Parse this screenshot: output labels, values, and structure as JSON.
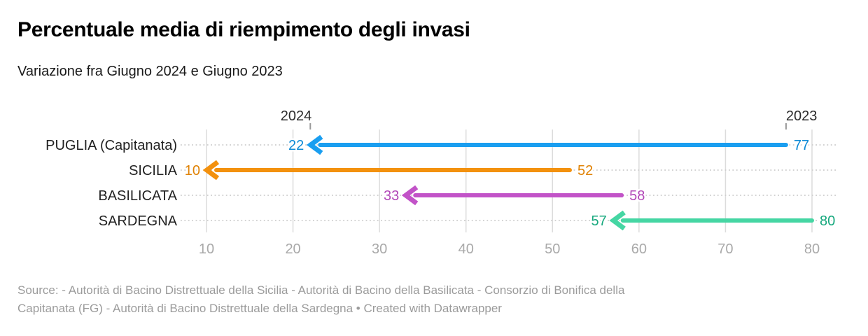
{
  "header": {
    "title": "Percentuale media di riempimento degli invasi",
    "subtitle": "Variazione fra Giugno 2024 e Giugno 2023"
  },
  "footer": {
    "lines": [
      "Source: - Autorità di Bacino Distrettuale della Sicilia - Autorità di Bacino della Basilicata - Consorzio di Bonifica della",
      "Capitanata (FG) - Autorità di Bacino Distrettuale della Sardegna • Created with Datawrapper"
    ]
  },
  "chart_data": {
    "type": "arrow",
    "title": "Percentuale media di riempimento degli invasi",
    "subtitle": "Variazione fra Giugno 2024 e Giugno 2023",
    "categories": [
      "PUGLIA (Capitanata)",
      "SICILIA",
      "BASILICATA",
      "SARDEGNA"
    ],
    "series": [
      {
        "name": "2023",
        "values": [
          77,
          52,
          58,
          80
        ]
      },
      {
        "name": "2024",
        "values": [
          22,
          10,
          33,
          57
        ]
      }
    ],
    "arrow_colors": [
      "#1a9ef0",
      "#f3910e",
      "#c253c8",
      "#45d6a3"
    ],
    "value_label_colors": [
      "#0e8ad6",
      "#e08306",
      "#b248b8",
      "#16a87d"
    ],
    "x_ticks": [
      10,
      20,
      30,
      40,
      50,
      60,
      70,
      80
    ],
    "xlim": [
      10,
      80
    ],
    "xlabel": "",
    "ylabel": "",
    "grid": true,
    "grid_color": "#dcdcdc",
    "leader_dot_color": "#cdcdcd",
    "tick_label_color": "#a9a9a9",
    "row_label_color": "#222222",
    "year_label_color": "#2b2b2b",
    "year_tick_color": "#999999",
    "legend_position": "year labels above first row endpoints",
    "arrow_direction": "values decrease: arrows point left from 2023 value to 2024 value"
  }
}
